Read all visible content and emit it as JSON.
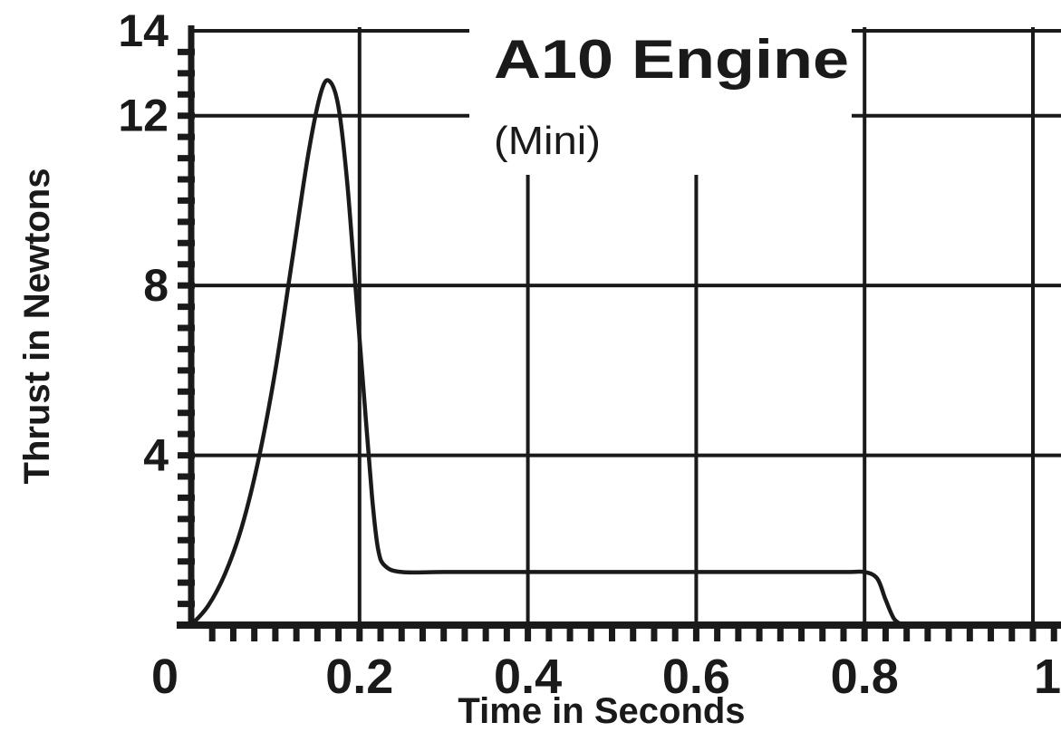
{
  "chart_data": {
    "type": "line",
    "title": "A10 Engine",
    "subtitle": "(Mini)",
    "xlabel": "Time in Seconds",
    "ylabel": "Thrust in Newtons",
    "xlim": [
      0,
      1
    ],
    "ylim": [
      0,
      14
    ],
    "x_ticks": [
      0,
      0.2,
      0.4,
      0.6,
      0.8,
      1
    ],
    "x_tick_labels": [
      "0",
      "0.2",
      "0.4",
      "0.6",
      "0.8",
      "1"
    ],
    "y_ticks": [
      4,
      8,
      12,
      14
    ],
    "y_tick_labels": [
      "4",
      "8",
      "12",
      "14"
    ],
    "grid": true,
    "series": [
      {
        "x": [
          0.0,
          0.02,
          0.04,
          0.06,
          0.08,
          0.1,
          0.12,
          0.14,
          0.155,
          0.165,
          0.175,
          0.185,
          0.195,
          0.205,
          0.215,
          0.222,
          0.23,
          0.25,
          0.3,
          0.4,
          0.5,
          0.6,
          0.7,
          0.78,
          0.8,
          0.815,
          0.825,
          0.835,
          0.845
        ],
        "y": [
          0.0,
          0.45,
          1.2,
          2.3,
          3.9,
          6.0,
          8.6,
          11.2,
          12.6,
          12.8,
          12.2,
          10.5,
          8.0,
          5.5,
          3.0,
          1.8,
          1.4,
          1.25,
          1.25,
          1.25,
          1.25,
          1.25,
          1.25,
          1.25,
          1.25,
          1.1,
          0.6,
          0.15,
          0.0
        ]
      }
    ]
  }
}
